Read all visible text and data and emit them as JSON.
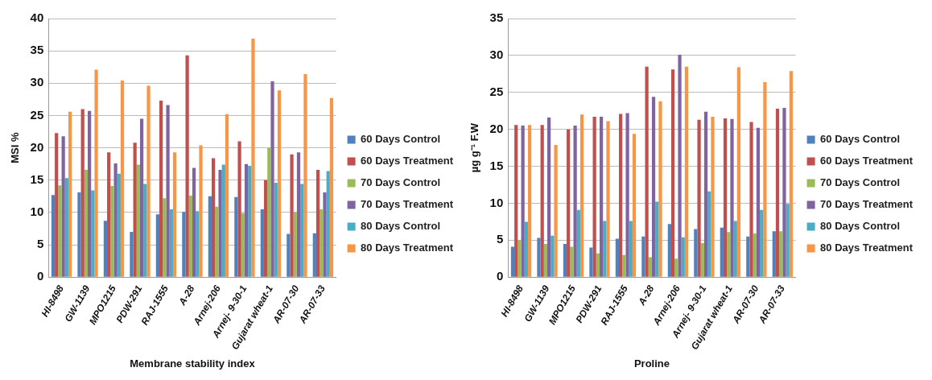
{
  "chart_data": [
    {
      "type": "bar",
      "xlabel": "Membrane stability index",
      "ylabel": "MSI %",
      "categories": [
        "HI-8498",
        "GW-1139",
        "MPO1215",
        "PDW-291",
        "RAJ-1555",
        "A-28",
        "Arnej-206",
        "Arnej- 9-30-1",
        "Gujarat wheat-1",
        "AR-07-30",
        "AR-07-33"
      ],
      "series": [
        {
          "name": "60 Days Control",
          "color": "#4f81bd",
          "values": [
            12.7,
            13.1,
            8.7,
            7.0,
            9.7,
            10.1,
            12.5,
            12.4,
            10.5,
            6.7,
            6.8
          ]
        },
        {
          "name": "60 Days Treatment",
          "color": "#c0504d",
          "values": [
            22.3,
            26.0,
            19.3,
            20.8,
            27.3,
            34.3,
            18.4,
            21.0,
            15.0,
            19.0,
            16.6
          ]
        },
        {
          "name": "70 Days Control",
          "color": "#9bbb59",
          "values": [
            14.2,
            16.6,
            14.1,
            17.4,
            12.2,
            12.6,
            10.9,
            9.9,
            20.0,
            10.0,
            10.5
          ]
        },
        {
          "name": "70 Days Treatment",
          "color": "#8064a2",
          "values": [
            21.8,
            25.7,
            17.6,
            24.5,
            26.6,
            16.9,
            16.6,
            17.5,
            30.3,
            19.3,
            13.1
          ]
        },
        {
          "name": "80 Days Control",
          "color": "#4bacc6",
          "values": [
            15.3,
            13.4,
            16.0,
            14.4,
            10.5,
            10.2,
            17.4,
            17.2,
            14.6,
            14.4,
            16.4
          ]
        },
        {
          "name": "80 Days Treatment",
          "color": "#f79646",
          "values": [
            25.6,
            32.1,
            30.4,
            29.6,
            19.3,
            20.4,
            25.2,
            36.9,
            28.9,
            31.4,
            27.7
          ]
        }
      ],
      "ylim": [
        0,
        40
      ],
      "yticks": [
        0,
        5,
        10,
        15,
        20,
        25,
        30,
        35,
        40
      ],
      "grid": "y",
      "legend": "right"
    },
    {
      "type": "bar",
      "xlabel": "Proline",
      "ylabel": "µg g⁻¹ F.W",
      "categories": [
        "HI-8498",
        "GW-1139",
        "MPO1215",
        "PDW-291",
        "RAJ-1555",
        "A-28",
        "Arnej-206",
        "Arnej- 9-30-1",
        "Gujarat wheat-1",
        "AR-07-30",
        "AR-07-33"
      ],
      "series": [
        {
          "name": "60 Days Control",
          "color": "#4f81bd",
          "values": [
            4.1,
            5.3,
            4.5,
            4.0,
            5.2,
            5.5,
            7.2,
            6.5,
            6.7,
            5.5,
            6.2
          ]
        },
        {
          "name": "60 Days Treatment",
          "color": "#c0504d",
          "values": [
            20.6,
            20.6,
            20.0,
            21.7,
            22.1,
            28.5,
            28.1,
            21.3,
            21.5,
            21.0,
            22.8
          ]
        },
        {
          "name": "70 Days Control",
          "color": "#9bbb59",
          "values": [
            5.0,
            4.5,
            4.1,
            3.2,
            3.0,
            2.7,
            2.5,
            4.6,
            6.1,
            5.9,
            6.2
          ]
        },
        {
          "name": "70 Days Treatment",
          "color": "#8064a2",
          "values": [
            20.5,
            21.6,
            20.5,
            21.7,
            22.2,
            24.4,
            30.1,
            22.4,
            21.4,
            20.2,
            22.9
          ]
        },
        {
          "name": "80 Days Control",
          "color": "#4bacc6",
          "values": [
            7.5,
            5.6,
            9.1,
            7.6,
            7.6,
            10.2,
            5.4,
            11.6,
            7.6,
            9.1,
            9.9
          ]
        },
        {
          "name": "80 Days Treatment",
          "color": "#f79646",
          "values": [
            20.6,
            17.9,
            22.0,
            21.1,
            19.4,
            23.8,
            28.5,
            21.7,
            28.4,
            26.4,
            27.9
          ]
        }
      ],
      "ylim": [
        0,
        35
      ],
      "yticks": [
        0,
        5,
        10,
        15,
        20,
        25,
        30,
        35
      ],
      "grid": "y",
      "legend": "right"
    }
  ]
}
